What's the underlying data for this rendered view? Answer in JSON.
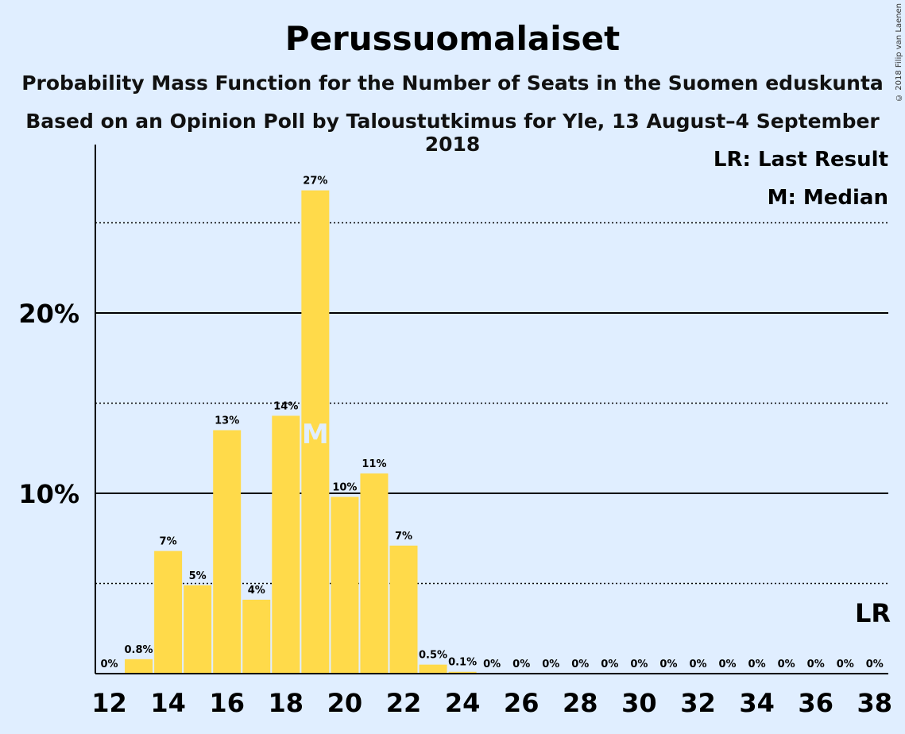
{
  "title": "Perussuomalaiset",
  "subtitle1": "Probability Mass Function for the Number of Seats in the Suomen eduskunta",
  "subtitle2": "Based on an Opinion Poll by Taloustutkimus for Yle, 13 August–4 September 2018",
  "copyright": "© 2018 Filip van Laenen",
  "legend": {
    "last_result": "LR: Last Result",
    "median": "M: Median"
  },
  "markers": {
    "median_label": "M",
    "median_seat": 19,
    "last_result_label": "LR",
    "last_result_seat": 38
  },
  "colors": {
    "background": "#e0eeff",
    "bar": "#ffda4a"
  },
  "chart_data": {
    "type": "bar",
    "x": [
      12,
      13,
      14,
      15,
      16,
      17,
      18,
      19,
      20,
      21,
      22,
      23,
      24,
      25,
      26,
      27,
      28,
      29,
      30,
      31,
      32,
      33,
      34,
      35,
      36,
      37,
      38
    ],
    "values": [
      0,
      0.8,
      6.8,
      4.9,
      13.5,
      4.1,
      14.3,
      26.8,
      9.8,
      11.1,
      7.1,
      0.5,
      0.1,
      0,
      0,
      0,
      0,
      0,
      0,
      0,
      0,
      0,
      0,
      0,
      0,
      0,
      0
    ],
    "labels": [
      "0%",
      "0.8%",
      "7%",
      "5%",
      "13%",
      "4%",
      "14%",
      "27%",
      "10%",
      "11%",
      "7%",
      "0.5%",
      "0.1%",
      "0%",
      "0%",
      "0%",
      "0%",
      "0%",
      "0%",
      "0%",
      "0%",
      "0%",
      "0%",
      "0%",
      "0%",
      "0%",
      "0%"
    ],
    "xticks": [
      12,
      14,
      16,
      18,
      20,
      22,
      24,
      26,
      28,
      30,
      32,
      34,
      36,
      38
    ],
    "yticks": [
      {
        "value": 10,
        "label": "10%"
      },
      {
        "value": 20,
        "label": "20%"
      }
    ],
    "dotted_gridlines": [
      5,
      15,
      25
    ],
    "ylim": [
      0,
      29.3
    ],
    "grid": true,
    "legend_position": "top-right"
  }
}
